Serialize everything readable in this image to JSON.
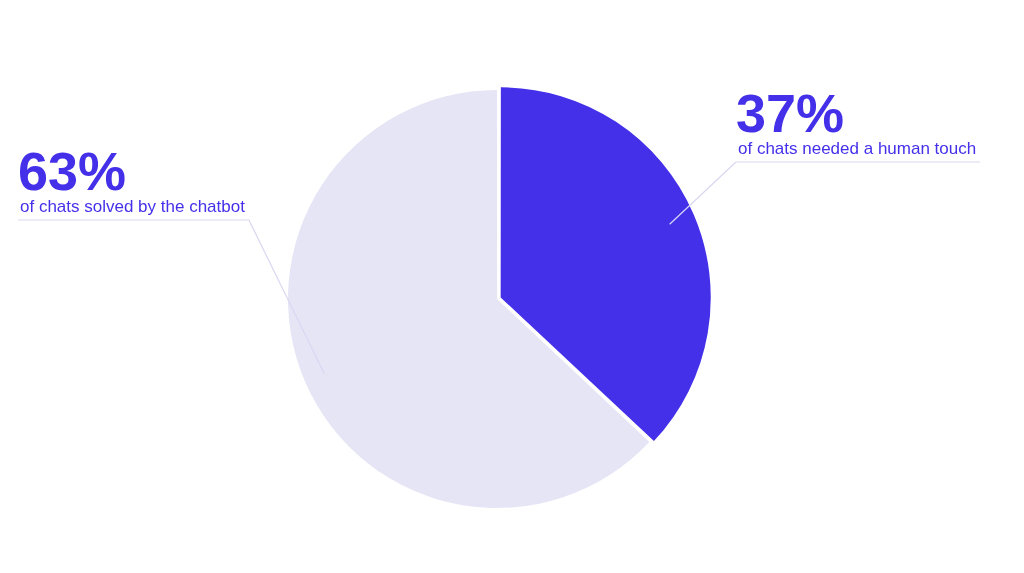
{
  "chart_data": {
    "type": "pie",
    "categories": [
      "of chats needed a human touch",
      "of chats solved by the chatbot"
    ],
    "values": [
      37,
      63
    ],
    "colors": [
      "#4530ea",
      "#e6e5f5"
    ],
    "value_labels": [
      "37%",
      "63%"
    ],
    "legend": false
  }
}
